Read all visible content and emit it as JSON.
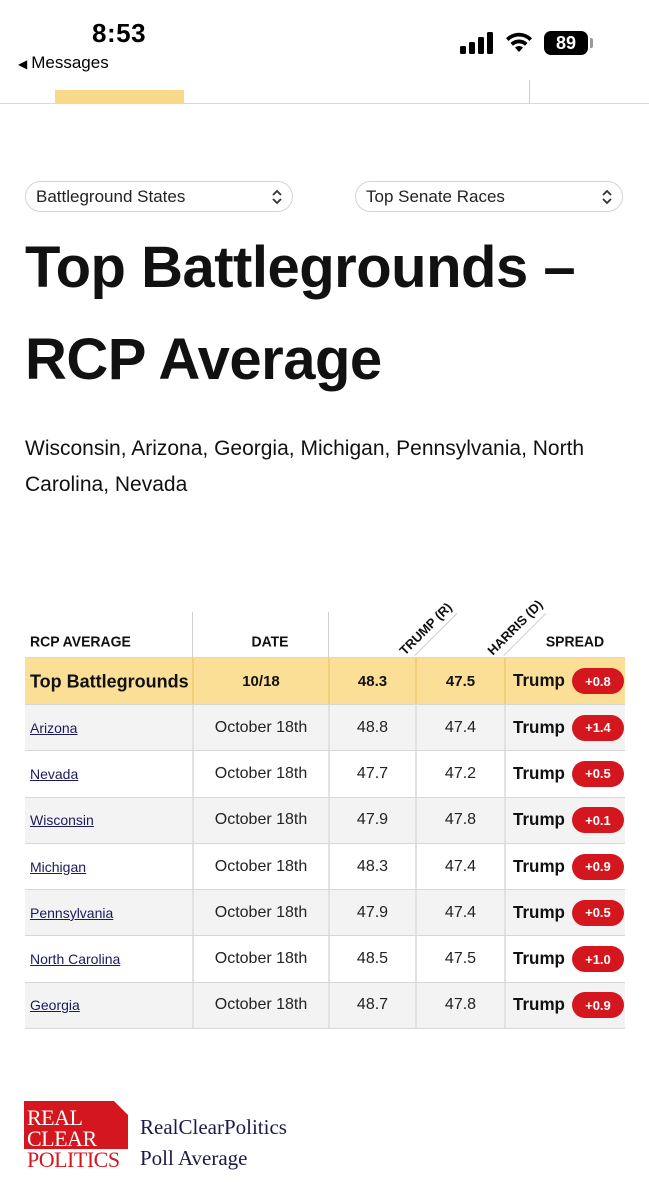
{
  "status_bar": {
    "time": "8:53",
    "back_label": "Messages",
    "battery": "89"
  },
  "filters": {
    "left_select": "Battleground States",
    "right_select": "Top Senate Races"
  },
  "page": {
    "title": "Top Battlegrounds – RCP Average",
    "subtitle": "Wisconsin, Arizona, Georgia, Michigan, Pennsylvania, North Carolina, Nevada"
  },
  "table": {
    "headers": {
      "rcp_average": "RCP AVERAGE",
      "date": "DATE",
      "trump": "TRUMP (R)",
      "harris": "HARRIS (D)",
      "spread": "SPREAD"
    },
    "summary": {
      "name": "Top Battlegrounds",
      "date": "10/18",
      "trump": "48.3",
      "harris": "47.5",
      "leader": "Trump",
      "spread": "+0.8"
    },
    "rows": [
      {
        "state": "Arizona",
        "date": "October 18th",
        "trump": "48.8",
        "harris": "47.4",
        "leader": "Trump",
        "spread": "+1.4"
      },
      {
        "state": "Nevada",
        "date": "October 18th",
        "trump": "47.7",
        "harris": "47.2",
        "leader": "Trump",
        "spread": "+0.5"
      },
      {
        "state": "Wisconsin",
        "date": "October 18th",
        "trump": "47.9",
        "harris": "47.8",
        "leader": "Trump",
        "spread": "+0.1"
      },
      {
        "state": "Michigan",
        "date": "October 18th",
        "trump": "48.3",
        "harris": "47.4",
        "leader": "Trump",
        "spread": "+0.9"
      },
      {
        "state": "Pennsylvania",
        "date": "October 18th",
        "trump": "47.9",
        "harris": "47.4",
        "leader": "Trump",
        "spread": "+0.5"
      },
      {
        "state": "North Carolina",
        "date": "October 18th",
        "trump": "48.5",
        "harris": "47.5",
        "leader": "Trump",
        "spread": "+1.0"
      },
      {
        "state": "Georgia",
        "date": "October 18th",
        "trump": "48.7",
        "harris": "47.8",
        "leader": "Trump",
        "spread": "+0.9"
      }
    ]
  },
  "footer": {
    "logo_lines": [
      "REAL",
      "CLEAR",
      "POLITICS"
    ],
    "brand": "RealClearPolitics",
    "caption": "Poll Average"
  },
  "colors": {
    "summary_row": "#fbdf96",
    "spread_pill": "#d4161e",
    "logo_red": "#d4161e",
    "link": "#1a1a5e"
  }
}
